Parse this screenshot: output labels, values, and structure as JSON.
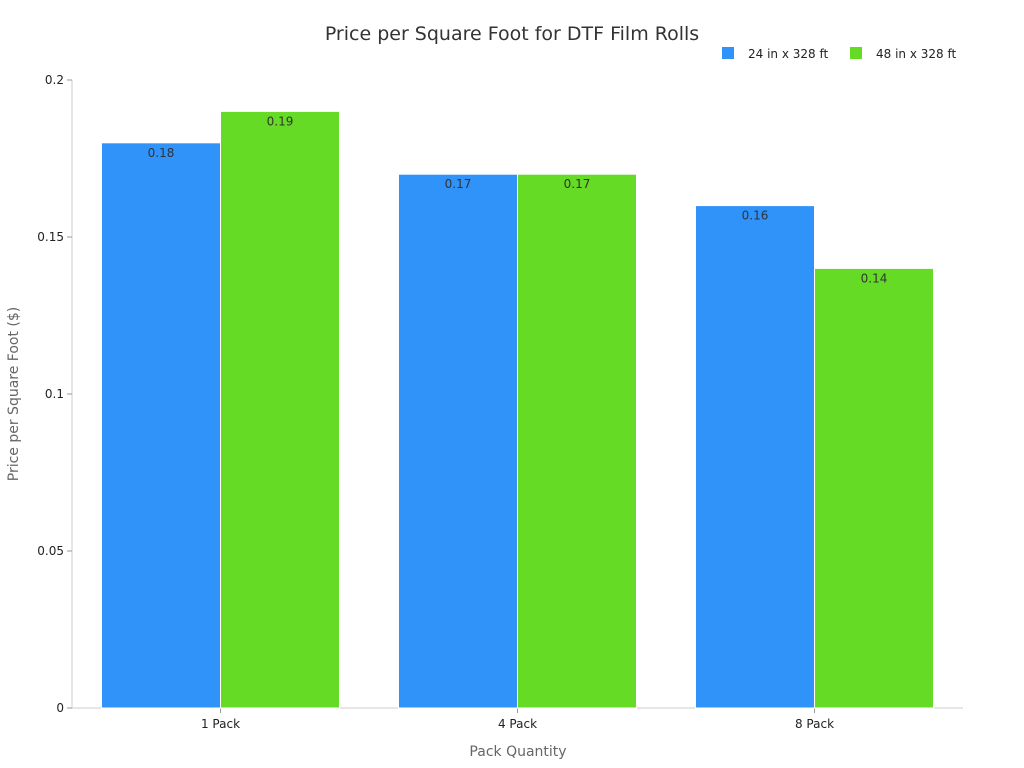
{
  "chart_data": {
    "type": "bar",
    "title": "Price per Square Foot for DTF Film Rolls",
    "xlabel": "Pack Quantity",
    "ylabel": "Price per Square Foot ($)",
    "categories": [
      "1 Pack",
      "4 Pack",
      "8 Pack"
    ],
    "series": [
      {
        "name": "24 in x 328 ft",
        "values": [
          0.18,
          0.17,
          0.16
        ],
        "color": "#2f93f9"
      },
      {
        "name": "48 in x 328 ft",
        "values": [
          0.19,
          0.17,
          0.14
        ],
        "color": "#66db26"
      }
    ],
    "ylim": [
      0,
      0.2
    ],
    "yticks": [
      "0",
      "0.05",
      "0.1",
      "0.15",
      "0.2"
    ],
    "grid": false,
    "legend": "top-right"
  }
}
